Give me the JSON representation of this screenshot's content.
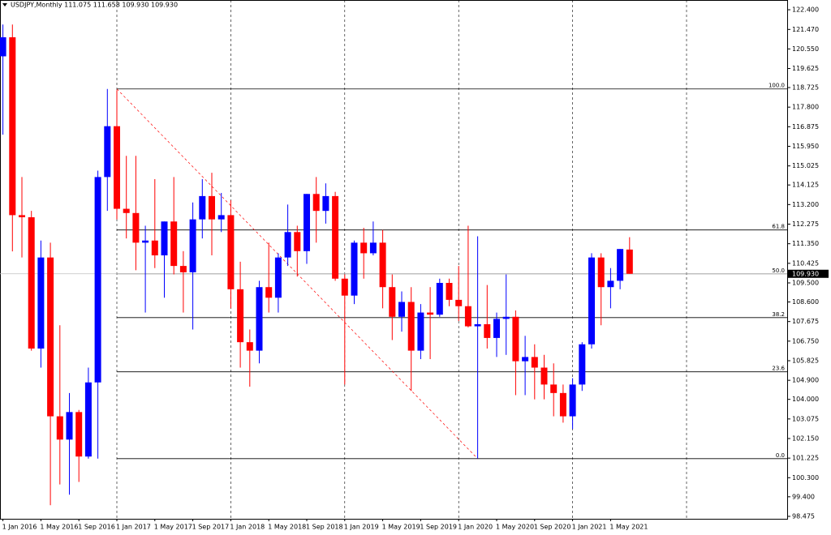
{
  "chart_data": {
    "type": "candlestick",
    "title": "USDJPY,Monthly  111.075 111.658 109.930 109.930",
    "categories": [
      "1 Jan 2016",
      null,
      null,
      null,
      "1 May 2016",
      null,
      null,
      null,
      "1 Sep 2016",
      null,
      null,
      null,
      "1 Jan 2017",
      null,
      null,
      null,
      "1 May 2017",
      null,
      null,
      null,
      "1 Sep 2017",
      null,
      null,
      null,
      "1 Jan 2018",
      null,
      null,
      null,
      "1 May 2018",
      null,
      null,
      null,
      "1 Sep 2018",
      null,
      null,
      null,
      "1 Jan 2019",
      null,
      null,
      null,
      "1 May 2019",
      null,
      null,
      null,
      "1 Sep 2019",
      null,
      null,
      null,
      "1 Jan 2020",
      null,
      null,
      null,
      "1 May 2020",
      null,
      null,
      null,
      "1 Sep 2020",
      null,
      null,
      null,
      "1 Jan 2021",
      null,
      null,
      null,
      "1 May 2021",
      null,
      null
    ],
    "open": [
      120.2,
      121.1,
      112.7,
      112.6,
      106.4,
      110.7,
      103.2,
      102.1,
      103.4,
      101.3,
      104.8,
      114.5,
      116.9,
      113.0,
      112.8,
      111.4,
      111.5,
      110.8,
      112.4,
      110.3,
      110.0,
      112.5,
      113.6,
      112.5,
      112.7,
      109.2,
      106.7,
      106.3,
      109.3,
      108.8,
      110.7,
      111.9,
      111.0,
      113.7,
      112.9,
      113.6,
      109.7,
      108.9,
      111.4,
      110.9,
      111.4,
      109.3,
      107.9,
      108.6,
      106.3,
      108.1,
      108.0,
      109.5,
      108.7,
      108.4,
      107.45,
      107.55,
      106.9,
      107.8,
      107.9,
      105.8,
      106.0,
      105.5,
      104.7,
      104.3,
      103.2,
      104.7,
      106.6,
      110.7,
      109.3,
      109.6,
      111.075
    ],
    "high": [
      121.7,
      121.7,
      114.5,
      112.9,
      111.5,
      111.4,
      107.5,
      104.3,
      103.5,
      105.5,
      114.8,
      118.66,
      118.6,
      115.5,
      115.5,
      112.2,
      114.4,
      112.4,
      114.5,
      111.0,
      113.3,
      114.4,
      114.7,
      113.75,
      113.4,
      110.5,
      107.3,
      109.6,
      111.4,
      110.9,
      113.2,
      112.2,
      113.7,
      114.5,
      114.2,
      113.8,
      109.9,
      111.5,
      112.1,
      112.4,
      112.0,
      109.9,
      109.1,
      109.3,
      108.5,
      109.3,
      109.7,
      109.7,
      110.3,
      112.2,
      111.7,
      109.4,
      108.1,
      109.9,
      108.2,
      107.0,
      106.6,
      106.1,
      105.7,
      104.7,
      105.0,
      106.7,
      110.9,
      110.9,
      110.2,
      111.1,
      111.658
    ],
    "low": [
      116.5,
      110.99,
      110.7,
      106.3,
      105.5,
      99.0,
      99.98,
      99.5,
      100.1,
      101.2,
      101.2,
      112.9,
      112.5,
      111.6,
      110.1,
      108.1,
      110.2,
      108.8,
      109.9,
      108.1,
      107.3,
      111.6,
      110.8,
      111.9,
      108.3,
      105.5,
      104.6,
      105.7,
      108.1,
      108.1,
      110.3,
      109.8,
      110.4,
      111.4,
      112.3,
      109.6,
      104.7,
      108.5,
      109.7,
      110.8,
      108.3,
      106.8,
      107.2,
      104.4,
      105.9,
      105.9,
      107.9,
      108.4,
      107.7,
      107.4,
      101.2,
      106.4,
      106.0,
      106.1,
      104.2,
      104.2,
      104.0,
      104.0,
      103.2,
      102.9,
      102.6,
      104.4,
      106.4,
      107.5,
      108.3,
      109.2,
      109.93
    ],
    "close": [
      121.1,
      112.7,
      112.6,
      106.4,
      110.7,
      103.2,
      102.1,
      103.4,
      101.3,
      104.8,
      114.5,
      116.9,
      113.0,
      112.8,
      111.4,
      111.5,
      110.8,
      112.4,
      110.3,
      110.0,
      112.5,
      113.6,
      112.5,
      112.7,
      109.2,
      106.7,
      106.3,
      109.3,
      108.8,
      110.7,
      111.9,
      111.0,
      113.7,
      112.9,
      113.6,
      109.7,
      108.9,
      111.4,
      110.9,
      111.4,
      109.3,
      107.9,
      108.6,
      106.3,
      108.1,
      108.0,
      109.5,
      108.7,
      108.4,
      107.45,
      107.55,
      106.9,
      107.8,
      107.9,
      105.8,
      106.0,
      105.5,
      104.7,
      104.3,
      103.2,
      104.7,
      106.6,
      110.7,
      109.3,
      109.6,
      111.1,
      109.93
    ],
    "up_color": "#0000ff",
    "down_color": "#ff0000",
    "ylim": [
      98.36,
      122.86
    ],
    "yticks": [
      {
        "value": 122.4,
        "label": "122.400"
      },
      {
        "value": 121.47,
        "label": "121.470"
      },
      {
        "value": 120.55,
        "label": "120.550"
      },
      {
        "value": 119.625,
        "label": "119.625"
      },
      {
        "value": 118.725,
        "label": "118.725"
      },
      {
        "value": 117.8,
        "label": "117.800"
      },
      {
        "value": 116.875,
        "label": "116.875"
      },
      {
        "value": 115.95,
        "label": "115.950"
      },
      {
        "value": 115.025,
        "label": "115.025"
      },
      {
        "value": 114.125,
        "label": "114.125"
      },
      {
        "value": 113.2,
        "label": "113.200"
      },
      {
        "value": 112.275,
        "label": "112.275"
      },
      {
        "value": 111.35,
        "label": "111.350"
      },
      {
        "value": 110.425,
        "label": "110.425"
      },
      {
        "value": 109.5,
        "label": "109.500"
      },
      {
        "value": 108.6,
        "label": "108.600"
      },
      {
        "value": 107.675,
        "label": "107.675"
      },
      {
        "value": 106.75,
        "label": "106.750"
      },
      {
        "value": 105.825,
        "label": "105.825"
      },
      {
        "value": 104.9,
        "label": "104.900"
      },
      {
        "value": 104,
        "label": "104.000"
      },
      {
        "value": 103.075,
        "label": "103.075"
      },
      {
        "value": 102.15,
        "label": "102.150"
      },
      {
        "value": 101.225,
        "label": "101.225"
      },
      {
        "value": 100.3,
        "label": "100.300"
      },
      {
        "value": 99.4,
        "label": "99.400"
      },
      {
        "value": 98.475,
        "label": "98.475"
      }
    ],
    "fib_levels": [
      {
        "level": "100.0",
        "price": 118.66
      },
      {
        "level": "61.8",
        "price": 112.0
      },
      {
        "level": "50.0",
        "price": 109.93
      },
      {
        "level": "38.2",
        "price": 107.86
      },
      {
        "level": "23.6",
        "price": 105.3
      },
      {
        "level": "0.0",
        "price": 101.2
      }
    ],
    "last_price": {
      "value": 109.93,
      "label": "109.930"
    }
  }
}
